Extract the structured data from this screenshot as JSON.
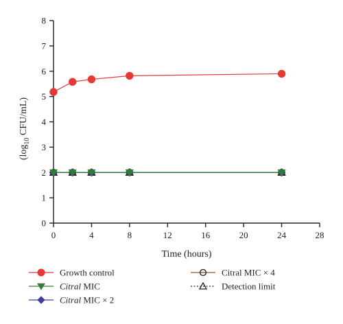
{
  "chart_data": {
    "type": "line",
    "xlabel": "Time (hours)",
    "ylabel": "(log10 CFU/mL)",
    "ylabel_main": "(log",
    "ylabel_sub": "10",
    "ylabel_rest": " CFU/mL)",
    "xlim": [
      0,
      28
    ],
    "ylim": [
      0,
      8
    ],
    "xticks": [
      0,
      4,
      8,
      12,
      16,
      20,
      24,
      28
    ],
    "yticks": [
      0,
      1,
      2,
      3,
      4,
      5,
      6,
      7,
      8
    ],
    "x": [
      0,
      2,
      4,
      8,
      24
    ],
    "grid": false,
    "legend_position": "bottom",
    "series": [
      {
        "name": "Growth control",
        "name_italic": "",
        "name_rest": "Growth control",
        "values": [
          5.18,
          5.58,
          5.68,
          5.82,
          5.9
        ],
        "color": "#e53935",
        "marker": "circle-filled",
        "line": "solid"
      },
      {
        "name": "Citral MIC",
        "name_italic": "Citral",
        "name_rest": " MIC",
        "values": [
          2.0,
          2.0,
          2.0,
          2.0,
          2.0
        ],
        "color": "#2e7d32",
        "marker": "triangle-down",
        "line": "solid"
      },
      {
        "name": "Citral MIC × 2",
        "name_italic": "Citral",
        "name_rest": " MIC × 2",
        "values": [
          2.0,
          2.0,
          2.0,
          2.0,
          2.0
        ],
        "color": "#3f3f9a",
        "marker": "diamond",
        "line": "solid"
      },
      {
        "name": "Citral MIC × 4",
        "name_italic": "",
        "name_rest": "Citral MIC × 4",
        "values": [
          2.0,
          2.0,
          2.0,
          2.0,
          2.0
        ],
        "color": "#8a5a2b",
        "marker": "circle-open",
        "line": "solid"
      },
      {
        "name": "Detection limit",
        "name_italic": "",
        "name_rest": "Detection limit",
        "values": [
          2.0,
          2.0,
          2.0,
          2.0,
          2.0
        ],
        "color": "#222222",
        "marker": "triangle-open",
        "line": "dotted"
      }
    ]
  }
}
